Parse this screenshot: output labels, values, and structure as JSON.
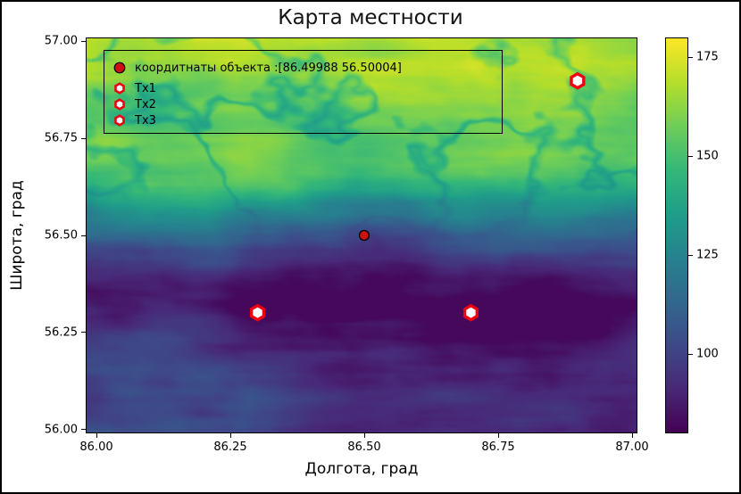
{
  "title": "Карта местности",
  "axes": {
    "xlabel": "Долгота, град",
    "ylabel": "Широта, град",
    "x_ticks": [
      {
        "label": "86.00",
        "value": 86.0
      },
      {
        "label": "86.25",
        "value": 86.25
      },
      {
        "label": "86.50",
        "value": 86.5
      },
      {
        "label": "86.75",
        "value": 86.75
      },
      {
        "label": "87.00",
        "value": 87.0
      }
    ],
    "y_ticks": [
      {
        "label": "57.00",
        "value": 57.0
      },
      {
        "label": "56.75",
        "value": 56.75
      },
      {
        "label": "56.50",
        "value": 56.5
      },
      {
        "label": "56.25",
        "value": 56.25
      },
      {
        "label": "56.00",
        "value": 56.0
      }
    ]
  },
  "colorbar": {
    "vmin": 80,
    "vmax": 180,
    "ticks": [
      {
        "label": "175",
        "value": 175
      },
      {
        "label": "150",
        "value": 150
      },
      {
        "label": "125",
        "value": 125
      },
      {
        "label": "100",
        "value": 100
      }
    ]
  },
  "legend": {
    "items": [
      {
        "icon": "circle",
        "label": "коордитнаты объекта :[86.49988  56.50004]"
      },
      {
        "icon": "hexagon",
        "label": "Tx1"
      },
      {
        "icon": "hexagon",
        "label": "Tx2"
      },
      {
        "icon": "hexagon",
        "label": "Tx3"
      }
    ]
  },
  "colors": {
    "object_marker_fill": "#cc1111",
    "marker_edge": "#000000",
    "tx_marker_fill": "#ffffff",
    "tx_marker_stroke": "#ee0011",
    "frame": "#000000",
    "background": "#ffffff"
  },
  "viridis": [
    "#440154",
    "#482878",
    "#3e4989",
    "#31688e",
    "#26828e",
    "#1f9e89",
    "#35b779",
    "#6ece58",
    "#b5de2b",
    "#fde725"
  ],
  "chart_data": {
    "type": "heatmap",
    "title": "Карта местности",
    "xlabel": "Долгота, град",
    "ylabel": "Широта, град",
    "xlim": [
      85.98,
      87.01
    ],
    "ylim": [
      55.99,
      57.01
    ],
    "x_ticks": [
      86.0,
      86.25,
      86.5,
      86.75,
      87.0
    ],
    "y_ticks": [
      56.0,
      56.25,
      56.5,
      56.75,
      57.0
    ],
    "colormap": "viridis",
    "value_range": [
      80,
      180
    ],
    "colorbar_ticks": [
      100,
      125,
      150,
      175
    ],
    "legend_position": "top-left",
    "grid": false,
    "terrain_description": "Elevation heatmap: high green-yellow terrain (150-180) across northern half (lat > 56.5) with brightest yellow patches near top edge and top-right; teal transition (120-150) around lat 56.45-56.6; very dark purple lowland band (82-105) around lat 56.25-56.45 with horizontal striations; medium purple-blue terrain (95-120) in the south (lat 56.0-56.25).",
    "series": [
      {
        "name": "коордитнаты объекта :[86.49988  56.50004]",
        "type": "scatter",
        "marker": "circle",
        "x": [
          86.49988
        ],
        "y": [
          56.50004
        ]
      },
      {
        "name": "Tx1",
        "type": "scatter",
        "marker": "hexagon",
        "x": [
          86.3
        ],
        "y": [
          56.3
        ]
      },
      {
        "name": "Tx2",
        "type": "scatter",
        "marker": "hexagon",
        "x": [
          86.7
        ],
        "y": [
          56.3
        ]
      },
      {
        "name": "Tx3",
        "type": "scatter",
        "marker": "hexagon",
        "x": [
          86.9
        ],
        "y": [
          56.9
        ]
      }
    ]
  }
}
